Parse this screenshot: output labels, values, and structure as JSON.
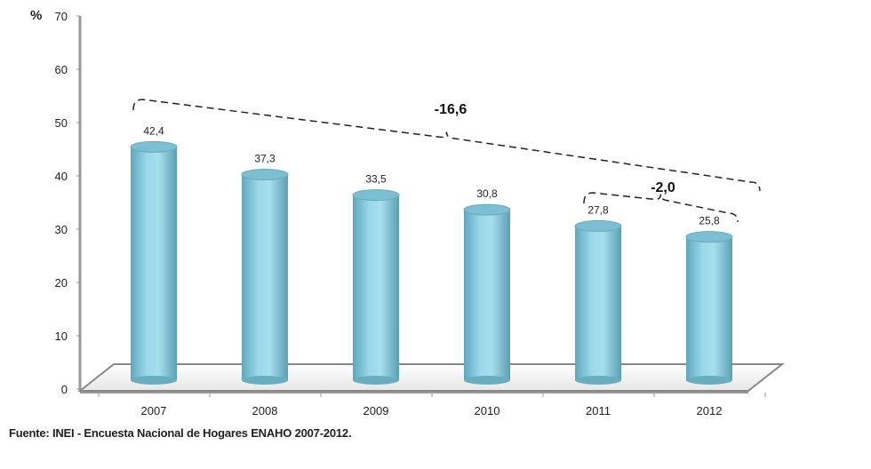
{
  "chart_data": {
    "type": "bar",
    "title": "",
    "xlabel": "",
    "ylabel": "%",
    "ylim": [
      0,
      70
    ],
    "yticks": [
      "0",
      "10",
      "20",
      "30",
      "40",
      "50",
      "60",
      "70"
    ],
    "categories": [
      "2007",
      "2008",
      "2009",
      "2010",
      "2011",
      "2012"
    ],
    "values": [
      42.4,
      37.3,
      33.5,
      30.8,
      27.8,
      25.8
    ],
    "value_labels": [
      "42,4",
      "37,3",
      "33,5",
      "30,8",
      "27,8",
      "25,8"
    ],
    "annotations": [
      {
        "label": "-16,6",
        "from": "2007",
        "to": "2012"
      },
      {
        "label": "-2,0",
        "from": "2011",
        "to": "2012"
      }
    ],
    "bar_color": "#8fd0e3",
    "grid": false
  },
  "source": "Fuente: INEI - Encuesta Nacional de Hogares ENAHO 2007-2012."
}
